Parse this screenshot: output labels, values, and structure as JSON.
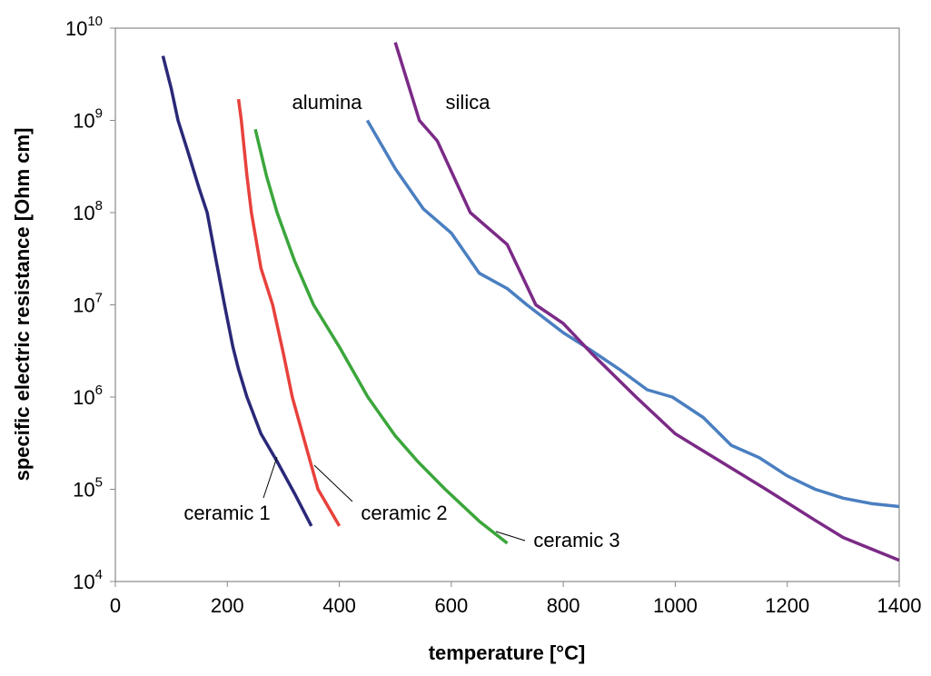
{
  "chart_data": {
    "type": "line",
    "x_label": "temperature [°C]",
    "y_label": "specific electric resistance [Ohm cm]",
    "log_y": true,
    "xlim": [
      0,
      1400
    ],
    "xticks": [
      0,
      200,
      400,
      600,
      800,
      1000,
      1200,
      1400
    ],
    "ylim": [
      10000,
      10000000000
    ],
    "yticks": [
      {
        "value": 10000,
        "label": "10",
        "exponent": "4"
      },
      {
        "value": 100000,
        "label": "10",
        "exponent": "5"
      },
      {
        "value": 1000000,
        "label": "10",
        "exponent": "6"
      },
      {
        "value": 10000000,
        "label": "10",
        "exponent": "7"
      },
      {
        "value": 100000000,
        "label": "10",
        "exponent": "8"
      },
      {
        "value": 1000000000,
        "label": "10",
        "exponent": "9"
      },
      {
        "value": 10000000000,
        "label": "10",
        "exponent": "10"
      }
    ],
    "series": [
      {
        "name": "ceramic 1",
        "color": "#2a2878",
        "x": [
          85,
          100,
          112,
          130,
          150,
          164,
          180,
          195,
          210,
          220,
          235,
          260,
          289,
          320,
          350
        ],
        "values": [
          5000000000,
          2200000000,
          1000000000,
          450000000,
          180000000,
          100000000,
          30000000,
          10000000,
          3500000,
          2000000,
          1000000,
          400000,
          200000,
          90000,
          40000
        ]
      },
      {
        "name": "ceramic 2",
        "color": "#e8413c",
        "x": [
          220,
          225,
          235,
          243,
          260,
          281,
          300,
          316,
          340,
          362,
          380,
          400
        ],
        "values": [
          1700000000,
          1000000000,
          250000000,
          100000000,
          25000000,
          10000000,
          3000000,
          1000000,
          300000,
          100000,
          65000,
          40000
        ]
      },
      {
        "name": "ceramic 3",
        "color": "#3ba63b",
        "x": [
          250,
          270,
          289,
          320,
          354,
          400,
          451,
          500,
          540,
          589,
          650,
          700
        ],
        "values": [
          800000000,
          250000000,
          100000000,
          30000000,
          10000000,
          3500000,
          1000000,
          380000,
          200000,
          100000,
          45000,
          26000
        ]
      },
      {
        "name": "alumina",
        "color": "#4a7fc1",
        "x": [
          450,
          500,
          550,
          600,
          650,
          700,
          735,
          800,
          850,
          900,
          950,
          995,
          1050,
          1100,
          1150,
          1200,
          1250,
          1300,
          1350,
          1400
        ],
        "values": [
          1000000000,
          300000000,
          110000000,
          60000000,
          22000000,
          15000000,
          10000000,
          5000000,
          3200000,
          2000000,
          1200000,
          1000000,
          600000,
          300000,
          220000,
          140000,
          100000,
          80000,
          70000,
          65000
        ]
      },
      {
        "name": "silica",
        "color": "#7b2a86",
        "x": [
          500,
          543,
          575,
          634,
          700,
          751,
          800,
          850,
          930,
          1000,
          1100,
          1162,
          1250,
          1300,
          1400
        ],
        "values": [
          7000000000,
          1000000000,
          600000000,
          100000000,
          45000000,
          10000000,
          6300000,
          3000000,
          1000000,
          400000,
          170000,
          100000,
          46000,
          30000,
          17000
        ]
      }
    ]
  }
}
